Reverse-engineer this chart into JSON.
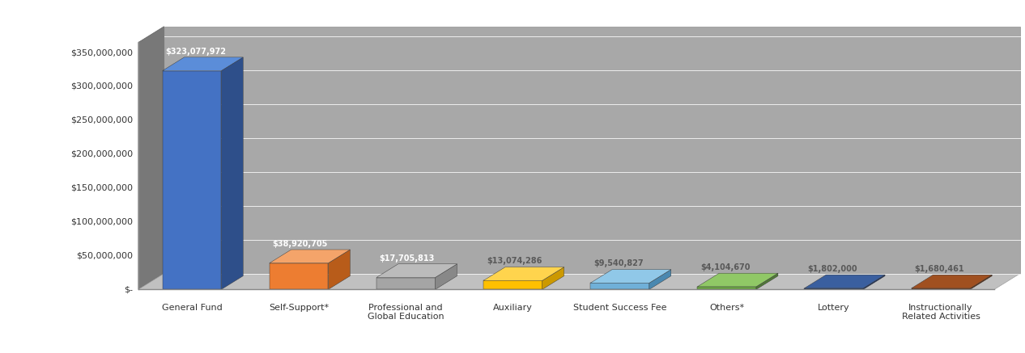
{
  "categories": [
    "General Fund",
    "Self-Support*",
    "Professional and\nGlobal Education",
    "Auxiliary",
    "Student Success Fee",
    "Others*",
    "Lottery",
    "Instructionally\nRelated Activities"
  ],
  "values": [
    323077972,
    38920705,
    17705813,
    13074286,
    9540827,
    4104670,
    1802000,
    1680461
  ],
  "bar_colors_front": [
    "#4472C4",
    "#ED7D31",
    "#A5A5A5",
    "#FFC000",
    "#70B0D8",
    "#70AD47",
    "#264478",
    "#843C0C"
  ],
  "bar_colors_top": [
    "#5B8DD9",
    "#F4A46A",
    "#BBBBBB",
    "#FFD44D",
    "#90C8E8",
    "#90C866",
    "#3A5F9F",
    "#A05020"
  ],
  "bar_colors_side": [
    "#2E4F8A",
    "#B85C1A",
    "#888888",
    "#CC9900",
    "#4A88B0",
    "#507838",
    "#1A3060",
    "#602A08"
  ],
  "labels": [
    "$323,077,972",
    "$38,920,705",
    "$17,705,813",
    "$13,074,286",
    "$9,540,827",
    "$4,104,670",
    "$1,802,000",
    "$1,680,461"
  ],
  "y_ticks": [
    0,
    50000000,
    100000000,
    150000000,
    200000000,
    250000000,
    300000000,
    350000000
  ],
  "y_tick_labels": [
    "$-",
    "$50,000,000",
    "$100,000,000",
    "$150,000,000",
    "$200,000,000",
    "$250,000,000",
    "$300,000,000",
    "$350,000,000"
  ],
  "ylim_max": 365000000,
  "wall_color": "#A0A0A0",
  "wall_dark": "#888888",
  "floor_color": "#C8C8C8",
  "floor_light": "#D8D8D8",
  "fig_bg": "#FFFFFF",
  "label_color_dark": "#595959",
  "label_color_white": "#FFFFFF",
  "tick_fontsize": 8,
  "cat_fontsize": 8,
  "label_fontsize": 7
}
